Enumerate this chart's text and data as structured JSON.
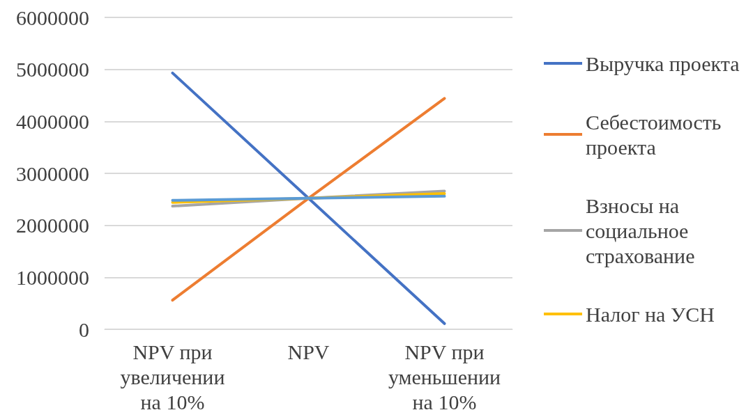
{
  "chart_data": {
    "type": "line",
    "categories": [
      "NPV при увеличении на 10%",
      "NPV",
      "NPV при уменьшении на 10%"
    ],
    "series": [
      {
        "name": "Выручка проекта",
        "color": "#4472c4",
        "values": [
          4930000,
          2520000,
          110000
        ]
      },
      {
        "name": "Себестоимость проекта",
        "color": "#ed7d31",
        "values": [
          560000,
          2520000,
          4440000
        ]
      },
      {
        "name": "Взносы на социальное страхование",
        "color": "#a5a5a5",
        "values": [
          2370000,
          2520000,
          2660000
        ]
      },
      {
        "name": "Налог на УСН",
        "color": "#ffc000",
        "values": [
          2440000,
          2520000,
          2610000
        ]
      },
      {
        "color": "#5b9bd5",
        "values": [
          2480000,
          2520000,
          2560000
        ]
      }
    ],
    "ylim": [
      0,
      6000000
    ],
    "yticks": [
      0,
      1000000,
      2000000,
      3000000,
      4000000,
      5000000,
      6000000
    ],
    "grid": "y",
    "legend": "right",
    "marker": "none",
    "line_style": "solid"
  }
}
